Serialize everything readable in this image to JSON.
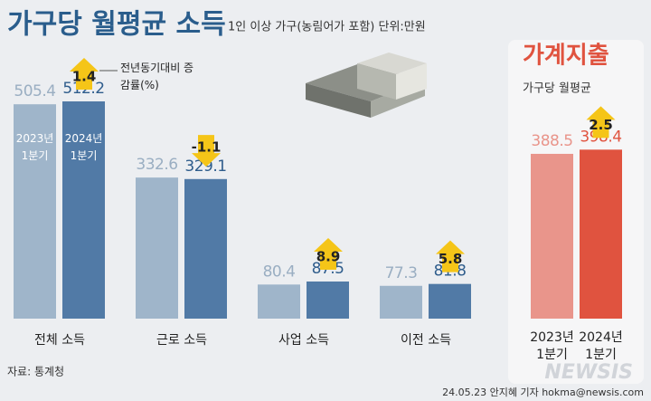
{
  "title": "가구당 월평균 소득",
  "subtitle": "1인 이상 가구(농림어가 포함) 단위:만원",
  "source": "자료: 통계청",
  "credit": "24.05.23 안지혜 기자 hokma@newsis.com",
  "watermark": "NEWSIS",
  "chart_data": [
    {
      "type": "bar",
      "annotation": "전년동기대비 증감률(%)",
      "categories": [
        "전체 소득",
        "근로 소득",
        "사업 소득",
        "이전 소득"
      ],
      "series": [
        {
          "name": "2023년 1분기",
          "color": "#9fb5ca",
          "values": [
            505.4,
            332.6,
            80.4,
            77.3
          ]
        },
        {
          "name": "2024년 1분기",
          "color": "#517aa6",
          "values": [
            512.2,
            329.1,
            87.5,
            81.8
          ]
        }
      ],
      "changes": [
        1.4,
        -1.1,
        8.9,
        5.8
      ]
    },
    {
      "type": "bar",
      "title": "가계지출",
      "subtitle": "가구당 월평균",
      "categories": [
        "2023년 1분기",
        "2024년 1분기"
      ],
      "values": [
        388.5,
        398.4
      ],
      "colors": [
        "#e9958b",
        "#e0533f"
      ],
      "changes": [
        2.5
      ]
    }
  ]
}
